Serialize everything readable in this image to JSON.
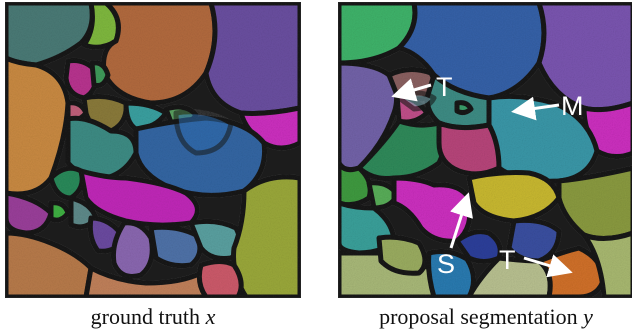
{
  "figure": {
    "left_panel": {
      "caption_text": "ground truth",
      "caption_var": "x"
    },
    "right_panel": {
      "caption_text": "proposal segmentation",
      "caption_var": "y",
      "annotations": [
        {
          "label": "T"
        },
        {
          "label": "M"
        },
        {
          "label": "S"
        },
        {
          "label": "T"
        }
      ]
    }
  },
  "colors": {
    "background": "#ffffff",
    "boundary": "#1a1a1a",
    "annotation_text": "#ffffff"
  }
}
